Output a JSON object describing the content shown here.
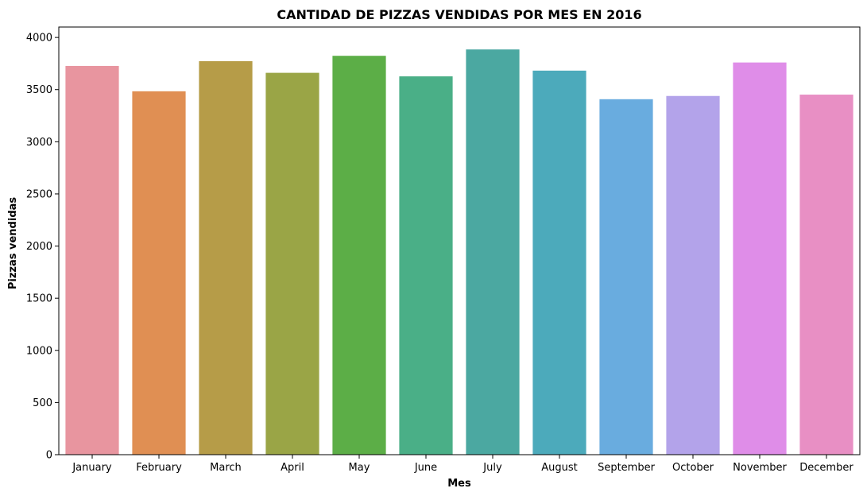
{
  "chart_data": {
    "type": "bar",
    "title": "CANTIDAD DE PIZZAS VENDIDAS POR MES EN 2016",
    "xlabel": "Mes",
    "ylabel": "Pizzas vendidas",
    "categories": [
      "January",
      "February",
      "March",
      "April",
      "May",
      "June",
      "July",
      "August",
      "September",
      "October",
      "November",
      "December"
    ],
    "values": [
      3727,
      3484,
      3773,
      3661,
      3824,
      3627,
      3885,
      3682,
      3408,
      3439,
      3760,
      3452
    ],
    "colors": [
      "#e8959f",
      "#e08f53",
      "#b69c48",
      "#9aa546",
      "#5cae47",
      "#4aaf87",
      "#4ba8a1",
      "#4caabb",
      "#69acdf",
      "#b3a3ea",
      "#df8de8",
      "#e88fc4"
    ],
    "ylim": [
      0,
      4100
    ],
    "yticks": [
      0,
      500,
      1000,
      1500,
      2000,
      2500,
      3000,
      3500,
      4000
    ],
    "grid": false,
    "legend": "none"
  }
}
